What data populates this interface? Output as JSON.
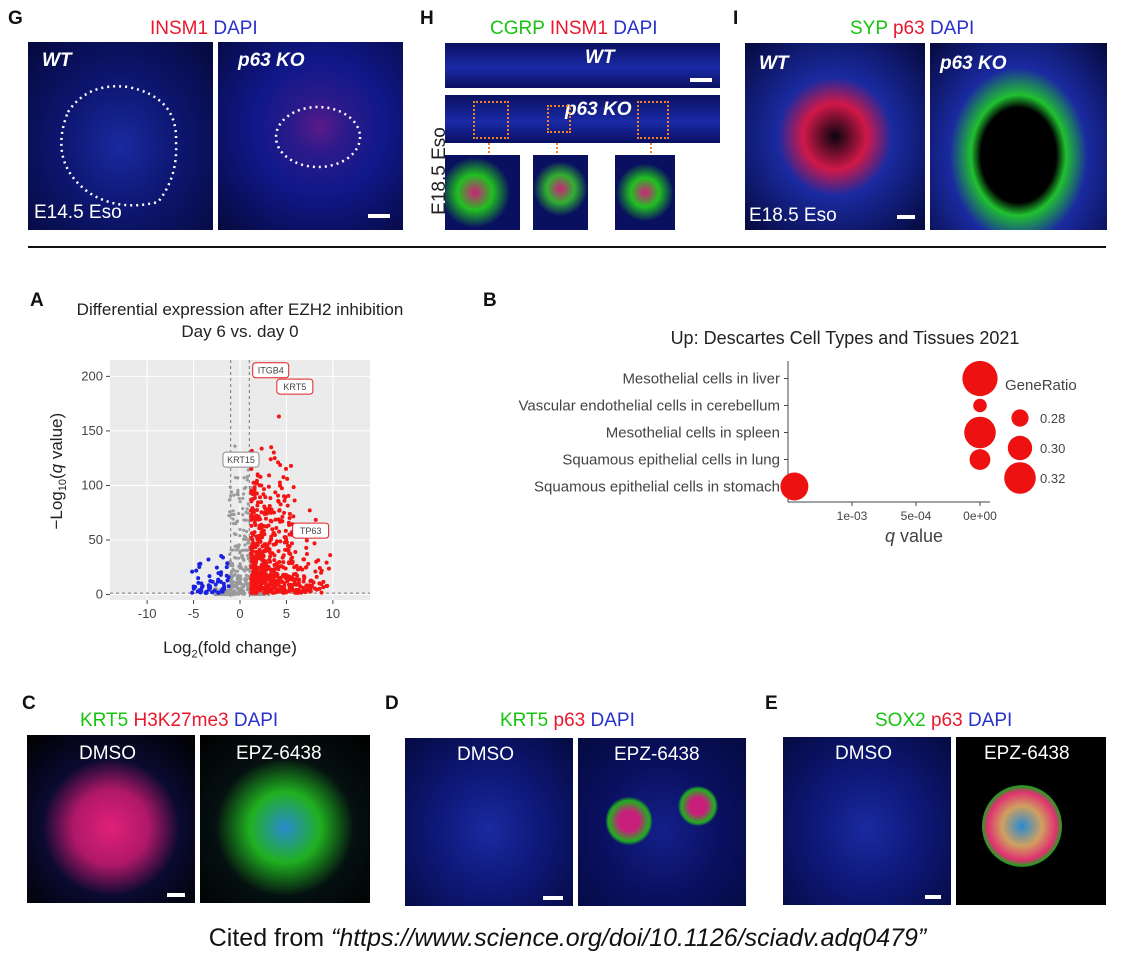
{
  "panels": {
    "g": {
      "letter": "G",
      "stain": [
        {
          "text": "INSM1",
          "color": "r"
        },
        {
          "text": "DAPI",
          "color": "b"
        }
      ],
      "left_label": "WT",
      "right_label": "p63 KO",
      "stage": "E14.5 Eso"
    },
    "h": {
      "letter": "H",
      "stain": [
        {
          "text": "CGRP",
          "color": "g"
        },
        {
          "text": "INSM1",
          "color": "r"
        },
        {
          "text": "DAPI",
          "color": "b"
        }
      ],
      "top_label": "WT",
      "mid_label": "p63 KO",
      "side_label": "E18.5 Eso"
    },
    "i": {
      "letter": "I",
      "stain": [
        {
          "text": "SYP",
          "color": "g"
        },
        {
          "text": "p63",
          "color": "r"
        },
        {
          "text": "DAPI",
          "color": "b"
        }
      ],
      "left_label": "WT",
      "right_label": "p63 KO",
      "stage": "E18.5 Eso"
    },
    "c": {
      "letter": "C",
      "stain": [
        {
          "text": "KRT5",
          "color": "g"
        },
        {
          "text": "H3K27me3",
          "color": "r"
        },
        {
          "text": "DAPI",
          "color": "b"
        }
      ],
      "left_label": "DMSO",
      "right_label": "EPZ-6438"
    },
    "d": {
      "letter": "D",
      "stain": [
        {
          "text": "KRT5",
          "color": "g"
        },
        {
          "text": "p63",
          "color": "r"
        },
        {
          "text": "DAPI",
          "color": "b"
        }
      ],
      "left_label": "DMSO",
      "right_label": "EPZ-6438"
    },
    "e": {
      "letter": "E",
      "stain": [
        {
          "text": "SOX2",
          "color": "g"
        },
        {
          "text": "p63",
          "color": "r"
        },
        {
          "text": "DAPI",
          "color": "b"
        }
      ],
      "left_label": "DMSO",
      "right_label": "EPZ-6438"
    },
    "a": {
      "letter": "A"
    },
    "b": {
      "letter": "B"
    }
  },
  "chart_data": [
    {
      "type": "scatter",
      "title": "Differential expression after EZH2 inhibition",
      "subtitle": "Day 6 vs. day 0",
      "xlabel": "Log2(fold change)",
      "ylabel": "−Log10(q value)",
      "xlim": [
        -14,
        14
      ],
      "ylim": [
        -5,
        215
      ],
      "xticks": [
        -10,
        -5,
        0,
        5,
        10
      ],
      "yticks": [
        0,
        50,
        100,
        150,
        200
      ],
      "thresholds": {
        "x": [
          -1,
          1
        ],
        "y": 1.3
      },
      "colors": {
        "up": "#f51414",
        "down": "#1a22e0",
        "ns": "#9a9a9a"
      },
      "labels": [
        {
          "text": "ITGB4",
          "x": 3.2,
          "y": 203,
          "color": "red"
        },
        {
          "text": "KRT5",
          "x": 5.2,
          "y": 192,
          "color": "red"
        },
        {
          "text": "KRT15",
          "x": 0.5,
          "y": 128,
          "color": "gray"
        },
        {
          "text": "TP63",
          "x": 5.5,
          "y": 58,
          "color": "red"
        }
      ]
    },
    {
      "type": "scatter",
      "title": "Up: Descartes Cell Types and Tissues 2021",
      "xlabel": "q value",
      "x_reversed": true,
      "xticks": [
        "1e-03",
        "5e-04",
        "0e+00"
      ],
      "xtick_values": [
        0.001,
        0.0005,
        0
      ],
      "categories": [
        "Mesothelial cells in liver",
        "Vascular endothelial cells in cerebellum",
        "Mesothelial cells in spleen",
        "Squamous epithelial cells in lung",
        "Squamous epithelial cells in stomach"
      ],
      "q_values": [
        1e-07,
        2e-08,
        3e-08,
        4e-07,
        0.00145
      ],
      "gene_ratio": [
        0.33,
        0.27,
        0.32,
        0.29,
        0.31
      ],
      "legend": {
        "title": "GeneRatio",
        "values": [
          0.28,
          0.3,
          0.32
        ]
      },
      "color": "#ee1111"
    }
  ],
  "citation": {
    "prefix": "Cited from ",
    "link": "“https://www.science.org/doi/10.1126/sciadv.adq0479”"
  }
}
